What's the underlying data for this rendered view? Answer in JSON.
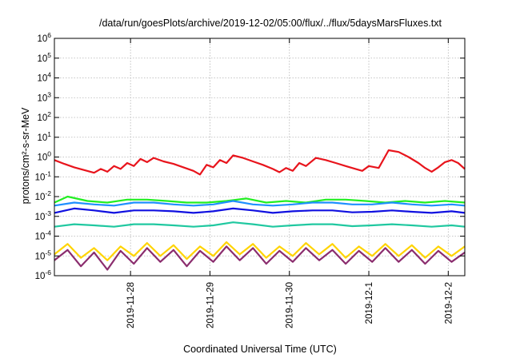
{
  "chart_data": {
    "type": "line",
    "title": "/data/run/goesPlots/archive/2019-12-02/05:00/flux/../flux/5daysMarsFluxes.txt",
    "xlabel": "Coordinated Universal Time (UTC)",
    "ylabel": "protons/cm²-s-sr-MeV",
    "yscale": "log",
    "ylim": [
      1e-06,
      1000000.0
    ],
    "y_tick_labels": [
      {
        "base": "10",
        "exp": "-6"
      },
      {
        "base": "10",
        "exp": "-5"
      },
      {
        "base": "10",
        "exp": "-4"
      },
      {
        "base": "10",
        "exp": "-3"
      },
      {
        "base": "10",
        "exp": "-2"
      },
      {
        "base": "10",
        "exp": "-1"
      },
      {
        "base": "10",
        "exp": "0"
      },
      {
        "base": "10",
        "exp": "1"
      },
      {
        "base": "10",
        "exp": "2"
      },
      {
        "base": "10",
        "exp": "3"
      },
      {
        "base": "10",
        "exp": "4"
      },
      {
        "base": "10",
        "exp": "5"
      },
      {
        "base": "10",
        "exp": "6"
      }
    ],
    "xlim": [
      "2019-11-27T01:00",
      "2019-12-02T05:00"
    ],
    "x_tick_labels": [
      "2019-11-28",
      "2019-11-29",
      "2019-11-30",
      "2019-12-1",
      "2019-12-2"
    ],
    "x_tick_dates": [
      "2019-11-28T00:00",
      "2019-11-29T00:00",
      "2019-11-30T00:00",
      "2019-12-01T00:00",
      "2019-12-02T00:00"
    ],
    "grid": true,
    "series": [
      {
        "color": "#e8141c",
        "x": [
          "2019-11-27T01:00",
          "2019-11-27T04:00",
          "2019-11-27T07:00",
          "2019-11-27T10:00",
          "2019-11-27T13:00",
          "2019-11-27T15:00",
          "2019-11-27T17:00",
          "2019-11-27T19:00",
          "2019-11-27T21:00",
          "2019-11-27T23:00",
          "2019-11-28T01:00",
          "2019-11-28T03:00",
          "2019-11-28T05:00",
          "2019-11-28T07:00",
          "2019-11-28T10:00",
          "2019-11-28T13:00",
          "2019-11-28T16:00",
          "2019-11-28T19:00",
          "2019-11-28T21:00",
          "2019-11-28T23:00",
          "2019-11-29T01:00",
          "2019-11-29T03:00",
          "2019-11-29T05:00",
          "2019-11-29T07:00",
          "2019-11-29T10:00",
          "2019-11-29T13:00",
          "2019-11-29T16:00",
          "2019-11-29T19:00",
          "2019-11-29T21:00",
          "2019-11-29T23:00",
          "2019-11-30T01:00",
          "2019-11-30T03:00",
          "2019-11-30T05:00",
          "2019-11-30T08:00",
          "2019-11-30T11:00",
          "2019-11-30T14:00",
          "2019-11-30T17:00",
          "2019-11-30T20:00",
          "2019-11-30T22:00",
          "2019-12-01T00:00",
          "2019-12-01T03:00",
          "2019-12-01T06:00",
          "2019-12-01T09:00",
          "2019-12-01T12:00",
          "2019-12-01T15:00",
          "2019-12-01T17:00",
          "2019-12-01T19:00",
          "2019-12-01T21:00",
          "2019-12-01T23:00",
          "2019-12-02T01:00",
          "2019-12-02T03:00",
          "2019-12-02T05:00"
        ],
        "values": [
          0.7,
          0.45,
          0.3,
          0.22,
          0.16,
          0.25,
          0.18,
          0.35,
          0.25,
          0.5,
          0.35,
          0.8,
          0.55,
          0.9,
          0.6,
          0.45,
          0.3,
          0.2,
          0.13,
          0.4,
          0.3,
          0.7,
          0.5,
          1.2,
          0.9,
          0.6,
          0.4,
          0.25,
          0.17,
          0.28,
          0.2,
          0.5,
          0.35,
          0.9,
          0.7,
          0.5,
          0.35,
          0.25,
          0.2,
          0.35,
          0.28,
          2.2,
          1.8,
          1.0,
          0.5,
          0.28,
          0.18,
          0.3,
          0.55,
          0.7,
          0.5,
          0.25
        ]
      },
      {
        "color": "#22ee22",
        "x": [
          "2019-11-27T01:00",
          "2019-11-27T05:00",
          "2019-11-27T11:00",
          "2019-11-27T17:00",
          "2019-11-27T23:00",
          "2019-11-28T05:00",
          "2019-11-28T11:00",
          "2019-11-28T17:00",
          "2019-11-28T23:00",
          "2019-11-29T05:00",
          "2019-11-29T11:00",
          "2019-11-29T17:00",
          "2019-11-29T23:00",
          "2019-11-30T05:00",
          "2019-11-30T11:00",
          "2019-11-30T17:00",
          "2019-11-30T23:00",
          "2019-12-01T05:00",
          "2019-12-01T11:00",
          "2019-12-01T17:00",
          "2019-12-01T23:00",
          "2019-12-02T05:00"
        ],
        "values": [
          0.005,
          0.01,
          0.006,
          0.005,
          0.007,
          0.007,
          0.006,
          0.005,
          0.005,
          0.006,
          0.008,
          0.005,
          0.006,
          0.005,
          0.007,
          0.007,
          0.006,
          0.005,
          0.006,
          0.005,
          0.006,
          0.005
        ]
      },
      {
        "color": "#1f8fff",
        "x": [
          "2019-11-27T01:00",
          "2019-11-27T07:00",
          "2019-11-27T13:00",
          "2019-11-27T19:00",
          "2019-11-28T01:00",
          "2019-11-28T07:00",
          "2019-11-28T13:00",
          "2019-11-28T19:00",
          "2019-11-29T01:00",
          "2019-11-29T07:00",
          "2019-11-29T13:00",
          "2019-11-29T19:00",
          "2019-11-30T01:00",
          "2019-11-30T07:00",
          "2019-11-30T13:00",
          "2019-11-30T19:00",
          "2019-12-01T01:00",
          "2019-12-01T07:00",
          "2019-12-01T13:00",
          "2019-12-01T19:00",
          "2019-12-02T01:00",
          "2019-12-02T05:00"
        ],
        "values": [
          0.0035,
          0.005,
          0.004,
          0.0035,
          0.005,
          0.005,
          0.004,
          0.0035,
          0.004,
          0.006,
          0.004,
          0.0035,
          0.004,
          0.005,
          0.005,
          0.004,
          0.004,
          0.005,
          0.004,
          0.0035,
          0.004,
          0.0035
        ]
      },
      {
        "color": "#1010e0",
        "x": [
          "2019-11-27T01:00",
          "2019-11-27T07:00",
          "2019-11-27T13:00",
          "2019-11-27T19:00",
          "2019-11-28T01:00",
          "2019-11-28T07:00",
          "2019-11-28T13:00",
          "2019-11-28T19:00",
          "2019-11-29T01:00",
          "2019-11-29T07:00",
          "2019-11-29T13:00",
          "2019-11-29T19:00",
          "2019-11-30T01:00",
          "2019-11-30T07:00",
          "2019-11-30T13:00",
          "2019-11-30T19:00",
          "2019-12-01T01:00",
          "2019-12-01T07:00",
          "2019-12-01T13:00",
          "2019-12-01T19:00",
          "2019-12-02T01:00",
          "2019-12-02T05:00"
        ],
        "values": [
          0.0015,
          0.0025,
          0.002,
          0.0015,
          0.002,
          0.002,
          0.0018,
          0.0015,
          0.0018,
          0.0025,
          0.002,
          0.0015,
          0.0018,
          0.002,
          0.002,
          0.0016,
          0.0017,
          0.002,
          0.0017,
          0.0015,
          0.0018,
          0.0015
        ]
      },
      {
        "color": "#20c8a0",
        "x": [
          "2019-11-27T01:00",
          "2019-11-27T07:00",
          "2019-11-27T13:00",
          "2019-11-27T19:00",
          "2019-11-28T01:00",
          "2019-11-28T07:00",
          "2019-11-28T13:00",
          "2019-11-28T19:00",
          "2019-11-29T01:00",
          "2019-11-29T07:00",
          "2019-11-29T13:00",
          "2019-11-29T19:00",
          "2019-11-30T01:00",
          "2019-11-30T07:00",
          "2019-11-30T13:00",
          "2019-11-30T19:00",
          "2019-12-01T01:00",
          "2019-12-01T07:00",
          "2019-12-01T13:00",
          "2019-12-01T19:00",
          "2019-12-02T01:00",
          "2019-12-02T05:00"
        ],
        "values": [
          0.0003,
          0.0004,
          0.00035,
          0.0003,
          0.0004,
          0.0004,
          0.00035,
          0.0003,
          0.00035,
          0.0005,
          0.0004,
          0.0003,
          0.00035,
          0.0004,
          0.0004,
          0.00032,
          0.00035,
          0.0004,
          0.00035,
          0.0003,
          0.00035,
          0.0003
        ]
      },
      {
        "color": "#ffd400",
        "x": [
          "2019-11-27T01:00",
          "2019-11-27T05:00",
          "2019-11-27T09:00",
          "2019-11-27T13:00",
          "2019-11-27T17:00",
          "2019-11-27T21:00",
          "2019-11-28T01:00",
          "2019-11-28T05:00",
          "2019-11-28T09:00",
          "2019-11-28T13:00",
          "2019-11-28T17:00",
          "2019-11-28T21:00",
          "2019-11-29T01:00",
          "2019-11-29T05:00",
          "2019-11-29T09:00",
          "2019-11-29T13:00",
          "2019-11-29T17:00",
          "2019-11-29T21:00",
          "2019-11-30T01:00",
          "2019-11-30T05:00",
          "2019-11-30T09:00",
          "2019-11-30T13:00",
          "2019-11-30T17:00",
          "2019-11-30T21:00",
          "2019-12-01T01:00",
          "2019-12-01T05:00",
          "2019-12-01T09:00",
          "2019-12-01T13:00",
          "2019-12-01T17:00",
          "2019-12-01T21:00",
          "2019-12-02T01:00",
          "2019-12-02T05:00"
        ],
        "values": [
          1.2e-05,
          4e-05,
          8e-06,
          2.5e-05,
          6e-06,
          3e-05,
          1e-05,
          4.5e-05,
          1e-05,
          3.5e-05,
          7e-06,
          3e-05,
          1e-05,
          5e-05,
          1.2e-05,
          4e-05,
          8e-06,
          3e-05,
          1e-05,
          4.5e-05,
          1.2e-05,
          4e-05,
          8e-06,
          3e-05,
          1e-05,
          4e-05,
          1e-05,
          3.5e-05,
          8e-06,
          3e-05,
          1e-05,
          3e-05
        ]
      },
      {
        "color": "#8b2d6e",
        "x": [
          "2019-11-27T01:00",
          "2019-11-27T05:00",
          "2019-11-27T09:00",
          "2019-11-27T13:00",
          "2019-11-27T17:00",
          "2019-11-27T21:00",
          "2019-11-28T01:00",
          "2019-11-28T05:00",
          "2019-11-28T09:00",
          "2019-11-28T13:00",
          "2019-11-28T17:00",
          "2019-11-28T21:00",
          "2019-11-29T01:00",
          "2019-11-29T05:00",
          "2019-11-29T09:00",
          "2019-11-29T13:00",
          "2019-11-29T17:00",
          "2019-11-29T21:00",
          "2019-11-30T01:00",
          "2019-11-30T05:00",
          "2019-11-30T09:00",
          "2019-11-30T13:00",
          "2019-11-30T17:00",
          "2019-11-30T21:00",
          "2019-12-01T01:00",
          "2019-12-01T05:00",
          "2019-12-01T09:00",
          "2019-12-01T13:00",
          "2019-12-01T17:00",
          "2019-12-01T21:00",
          "2019-12-02T01:00",
          "2019-12-02T05:00"
        ],
        "values": [
          6e-06,
          2e-05,
          3e-06,
          1.5e-05,
          2e-06,
          1.8e-05,
          4e-06,
          2.5e-05,
          5e-06,
          2e-05,
          3e-06,
          1.8e-05,
          5e-06,
          3e-05,
          6e-06,
          2.5e-05,
          4e-06,
          1.8e-05,
          5e-06,
          2.5e-05,
          6e-06,
          2e-05,
          4e-06,
          1.8e-05,
          5e-06,
          2.5e-05,
          5e-06,
          2e-05,
          4e-06,
          1.8e-05,
          5e-06,
          1.5e-05
        ]
      }
    ]
  }
}
